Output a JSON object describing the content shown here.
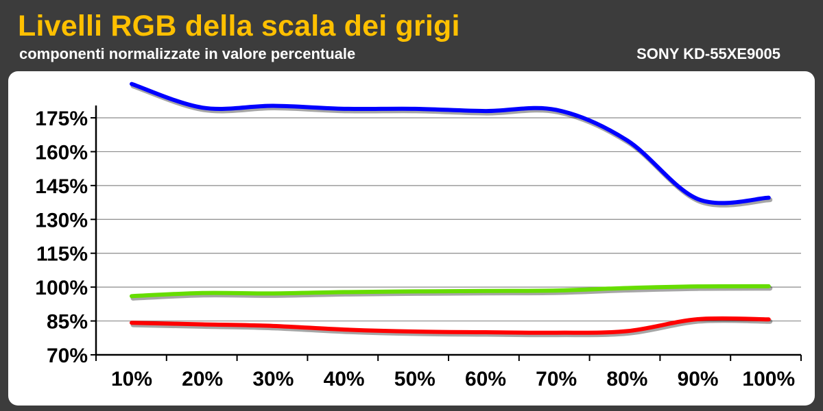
{
  "header": {
    "title": "Livelli RGB della scala dei grigi",
    "subtitle": "componenti normalizzate in valore percentuale",
    "device": "SONY KD-55XE9005"
  },
  "colors": {
    "title": "#ffc000",
    "background": "#3c3c3c",
    "panel": "#ffffff",
    "red": "#ff0000",
    "green": "#66dd00",
    "blue": "#0000ff"
  },
  "chart_data": {
    "type": "line",
    "title": "Livelli RGB della scala dei grigi",
    "subtitle": "componenti normalizzate in valore percentuale",
    "xlabel": "",
    "ylabel": "",
    "grid": true,
    "x": [
      10,
      20,
      30,
      40,
      50,
      60,
      70,
      80,
      90,
      100
    ],
    "x_tick_labels": [
      "10%",
      "20%",
      "30%",
      "40%",
      "50%",
      "60%",
      "70%",
      "80%",
      "90%",
      "100%"
    ],
    "y_ticks": [
      70,
      85,
      100,
      115,
      130,
      145,
      160,
      175
    ],
    "y_tick_labels": [
      "70%",
      "85%",
      "100%",
      "115%",
      "130%",
      "145%",
      "160%",
      "175%"
    ],
    "ylim": [
      70,
      181
    ],
    "series": [
      {
        "color": "#0000ff",
        "values": [
          190,
          179.5,
          180.3,
          179,
          179,
          178,
          178.5,
          165,
          139,
          139.6
        ]
      },
      {
        "color": "#66dd00",
        "values": [
          96,
          97.4,
          97.2,
          97.8,
          98.1,
          98.3,
          98.5,
          99.6,
          100.3,
          100.4
        ]
      },
      {
        "color": "#ff0000",
        "values": [
          84.2,
          83.5,
          82.8,
          81.2,
          80.3,
          80,
          79.8,
          80.5,
          85.8,
          85.7
        ]
      }
    ]
  }
}
